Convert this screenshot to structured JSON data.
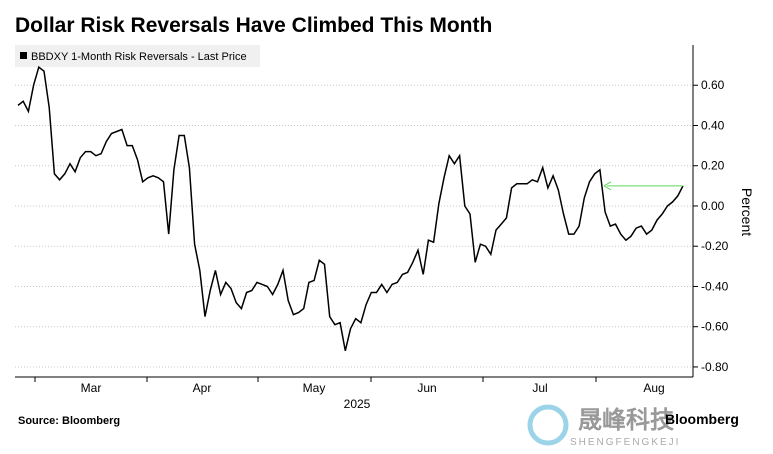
{
  "chart_data": {
    "type": "line",
    "title": "Dollar Risk Reversals Have Climbed This Month",
    "y_label": "Percent",
    "x_labels": [
      "Mar",
      "Apr",
      "May",
      "Jun",
      "Jul",
      "Aug"
    ],
    "x_year": "2025",
    "source": "Source: Bloomberg",
    "brand": "Bloomberg",
    "watermark": "晟峰科技",
    "watermark_sub": "SHENGFENGKEJI",
    "series": [
      {
        "name": "BBDXY 1-Month Risk Reversals - Last Price",
        "color": "#000000",
        "values": [
          0.5,
          0.52,
          0.47,
          0.6,
          0.69,
          0.67,
          0.49,
          0.16,
          0.13,
          0.16,
          0.21,
          0.17,
          0.24,
          0.27,
          0.27,
          0.25,
          0.26,
          0.32,
          0.36,
          0.37,
          0.38,
          0.3,
          0.3,
          0.23,
          0.12,
          0.14,
          0.15,
          0.14,
          0.12,
          -0.14,
          0.18,
          0.35,
          0.35,
          0.19,
          -0.19,
          -0.32,
          -0.55,
          -0.42,
          -0.32,
          -0.44,
          -0.38,
          -0.41,
          -0.48,
          -0.51,
          -0.43,
          -0.42,
          -0.38,
          -0.39,
          -0.4,
          -0.44,
          -0.39,
          -0.32,
          -0.47,
          -0.54,
          -0.53,
          -0.51,
          -0.38,
          -0.37,
          -0.27,
          -0.29,
          -0.55,
          -0.59,
          -0.58,
          -0.72,
          -0.61,
          -0.56,
          -0.58,
          -0.49,
          -0.43,
          -0.43,
          -0.39,
          -0.43,
          -0.39,
          -0.38,
          -0.34,
          -0.33,
          -0.28,
          -0.22,
          -0.34,
          -0.17,
          -0.18,
          0.01,
          0.14,
          0.25,
          0.21,
          0.25,
          0.0,
          -0.04,
          -0.28,
          -0.19,
          -0.2,
          -0.24,
          -0.12,
          -0.09,
          -0.06,
          0.09,
          0.11,
          0.11,
          0.11,
          0.13,
          0.12,
          0.19,
          0.09,
          0.15,
          0.08,
          -0.04,
          -0.14,
          -0.14,
          -0.1,
          0.04,
          0.12,
          0.16,
          0.18,
          -0.03,
          -0.1,
          -0.09,
          -0.14,
          -0.17,
          -0.15,
          -0.11,
          -0.1,
          -0.14,
          -0.12,
          -0.07,
          -0.04,
          0.0,
          0.02,
          0.05,
          0.1
        ]
      }
    ],
    "annotation_color": "#5cd65c",
    "ylim": [
      -0.85,
      0.8
    ],
    "yticks": [
      {
        "value": 0.6,
        "label": "0.60"
      },
      {
        "value": 0.4,
        "label": "0.40"
      },
      {
        "value": 0.2,
        "label": "0.20"
      },
      {
        "value": 0,
        "label": "0.00"
      },
      {
        "value": -0.2,
        "label": "-0.20"
      },
      {
        "value": -0.4,
        "label": "-0.40"
      },
      {
        "value": -0.6,
        "label": "-0.60"
      },
      {
        "value": -0.8,
        "label": "-0.80"
      }
    ],
    "grid": true
  }
}
